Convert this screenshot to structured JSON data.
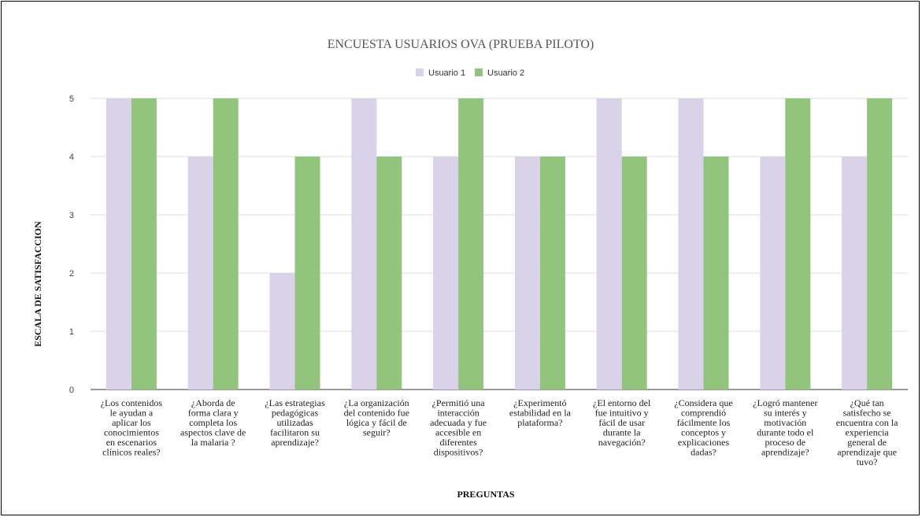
{
  "chart_data": {
    "type": "bar",
    "title": "ENCUESTA USUARIOS OVA (PRUEBA PILOTO)",
    "xlabel": "PREGUNTAS",
    "ylabel": "ESCALA DE SATISFACCION",
    "ylim": [
      0,
      5
    ],
    "yticks": [
      0,
      1,
      2,
      3,
      4,
      5
    ],
    "grid": true,
    "legend_position": "top",
    "categories": [
      "¿Los contenidos le ayudan a aplicar los conocimientos en escenarios clínicos reales?",
      "¿Aborda de forma clara y completa los aspectos clave de la malaria ?",
      "¿Las estrategias pedagógicas utilizadas facilitaron su aprendizaje?",
      "¿La organización del contenido fue lógica y fácil de seguir?",
      "¿Permitió una interacción adecuada y fue accesible en diferentes dispositivos?",
      "¿Experimentó estabilidad en la plataforma?",
      "¿El entorno del fue intuitivo y fácil de usar durante la navegación?",
      "¿Considera que comprendió fácilmente los conceptos y explicaciones dadas?",
      "¿Logró mantener su interés y motivación durante todo el proceso de aprendizaje?",
      "¿Qué tan satisfecho se encuentra con la experiencia general de aprendizaje que tuvo?"
    ],
    "category_lines": [
      [
        "¿Los contenidos",
        "le ayudan a",
        "aplicar los",
        "conocimientos",
        "en escenarios",
        "clínicos reales?"
      ],
      [
        "¿Aborda de",
        "forma clara y",
        "completa los",
        "aspectos clave de",
        "la malaria ?"
      ],
      [
        "¿Las estrategias",
        "pedagógicas",
        "utilizadas",
        "facilitaron su",
        "aprendizaje?"
      ],
      [
        "¿La organización",
        "del contenido fue",
        "lógica y fácil de",
        "seguir?"
      ],
      [
        "¿Permitió una",
        "interacción",
        "adecuada y fue",
        "accesible en",
        "diferentes",
        "dispositivos?"
      ],
      [
        "¿Experimentó",
        "estabilidad en la",
        "plataforma?"
      ],
      [
        "¿El entorno del",
        "fue intuitivo y",
        "fácil de usar",
        "durante la",
        "navegación?"
      ],
      [
        "¿Considera que",
        "comprendió",
        "fácilmente los",
        "conceptos y",
        "explicaciones",
        "dadas?"
      ],
      [
        "¿Logró mantener",
        "su interés y",
        "motivación",
        "durante todo el",
        "proceso de",
        "aprendizaje?"
      ],
      [
        "¿Qué tan",
        "satisfecho se",
        "encuentra con la",
        "experiencia",
        "general de",
        "aprendizaje que",
        "tuvo?"
      ]
    ],
    "series": [
      {
        "name": "Usuario 1",
        "color": "#d9d2e9",
        "values": [
          5,
          4,
          2,
          5,
          4,
          4,
          5,
          5,
          4,
          4
        ]
      },
      {
        "name": "Usuario 2",
        "color": "#93c47d",
        "values": [
          5,
          5,
          4,
          4,
          5,
          4,
          4,
          4,
          5,
          5
        ]
      }
    ]
  }
}
